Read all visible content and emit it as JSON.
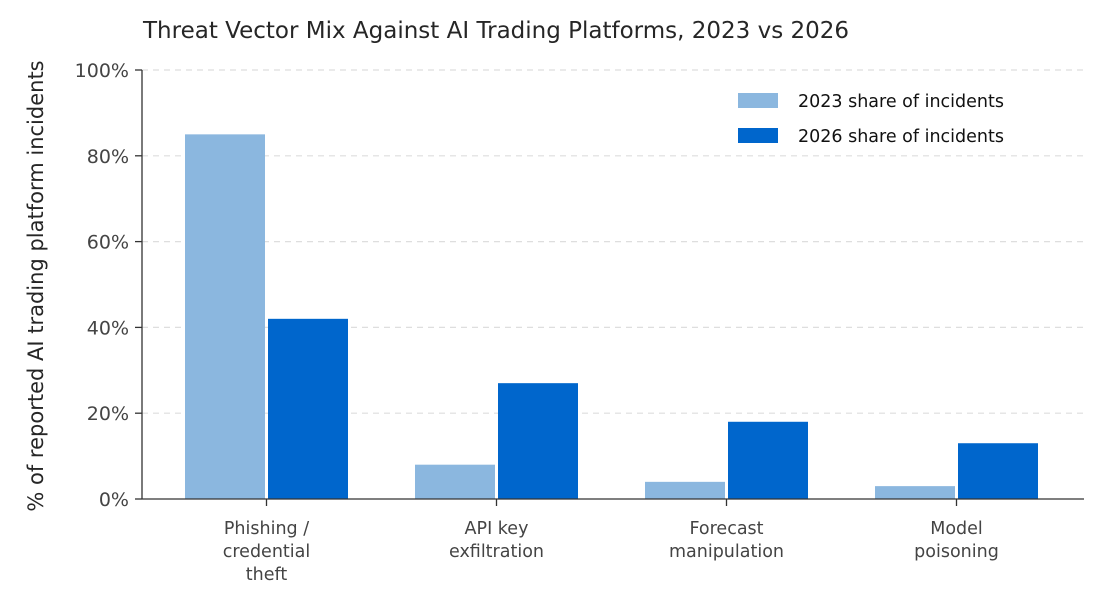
{
  "chart_data": {
    "type": "bar",
    "title": "Threat Vector Mix Against AI Trading Platforms, 2023 vs 2026",
    "xlabel": "",
    "ylabel": "% of reported AI trading platform incidents",
    "ylim": [
      0,
      100
    ],
    "yticks": [
      0,
      20,
      40,
      60,
      80,
      100
    ],
    "ytick_labels": [
      "0%",
      "20%",
      "40%",
      "60%",
      "80%",
      "100%"
    ],
    "categories": [
      [
        "Phishing /",
        "credential",
        "theft"
      ],
      [
        "API key",
        "exfiltration"
      ],
      [
        "Forecast",
        "manipulation"
      ],
      [
        "Model",
        "poisoning"
      ]
    ],
    "series": [
      {
        "name": "2023 share of incidents",
        "color": "#8bb7df",
        "values": [
          85,
          8,
          4,
          3
        ]
      },
      {
        "name": "2026 share of incidents",
        "color": "#0066cc",
        "values": [
          42,
          27,
          18,
          13
        ]
      }
    ],
    "grid": "y-dashed",
    "legend_position": "top-right"
  }
}
